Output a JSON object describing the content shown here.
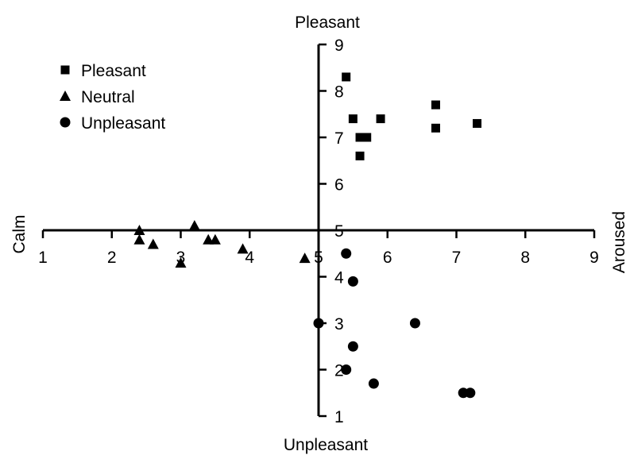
{
  "chart_data": {
    "type": "scatter",
    "title": "",
    "axis_titles": {
      "top": "Pleasant",
      "bottom": "Unpleasant",
      "left": "Calm",
      "right": "Aroused"
    },
    "xlim": [
      1,
      9
    ],
    "ylim": [
      1,
      9
    ],
    "x_ticks": [
      1,
      2,
      3,
      4,
      5,
      6,
      7,
      8,
      9
    ],
    "y_ticks": [
      1,
      2,
      3,
      4,
      5,
      6,
      7,
      8,
      9
    ],
    "axes_cross_at": {
      "x": 5,
      "y": 5
    },
    "grid": false,
    "legend_position": "top-left",
    "series": [
      {
        "name": "Pleasant",
        "marker": "square",
        "points": [
          {
            "x": 5.4,
            "y": 8.3
          },
          {
            "x": 5.5,
            "y": 7.4
          },
          {
            "x": 5.6,
            "y": 7.0
          },
          {
            "x": 5.7,
            "y": 7.0
          },
          {
            "x": 5.6,
            "y": 6.6
          },
          {
            "x": 5.9,
            "y": 7.4
          },
          {
            "x": 6.7,
            "y": 7.7
          },
          {
            "x": 6.7,
            "y": 7.2
          },
          {
            "x": 7.3,
            "y": 7.3
          }
        ]
      },
      {
        "name": "Neutral",
        "marker": "triangle",
        "points": [
          {
            "x": 2.4,
            "y": 5.0
          },
          {
            "x": 2.4,
            "y": 4.8
          },
          {
            "x": 2.6,
            "y": 4.7
          },
          {
            "x": 3.0,
            "y": 4.3
          },
          {
            "x": 3.2,
            "y": 5.1
          },
          {
            "x": 3.4,
            "y": 4.8
          },
          {
            "x": 3.5,
            "y": 4.8
          },
          {
            "x": 3.9,
            "y": 4.6
          },
          {
            "x": 4.8,
            "y": 4.4
          }
        ]
      },
      {
        "name": "Unpleasant",
        "marker": "circle",
        "points": [
          {
            "x": 5.4,
            "y": 4.5
          },
          {
            "x": 5.5,
            "y": 3.9
          },
          {
            "x": 5.0,
            "y": 3.0
          },
          {
            "x": 5.5,
            "y": 2.5
          },
          {
            "x": 5.4,
            "y": 2.0
          },
          {
            "x": 5.8,
            "y": 1.7
          },
          {
            "x": 6.4,
            "y": 3.0
          },
          {
            "x": 7.1,
            "y": 1.5
          },
          {
            "x": 7.2,
            "y": 1.5
          }
        ]
      }
    ]
  }
}
